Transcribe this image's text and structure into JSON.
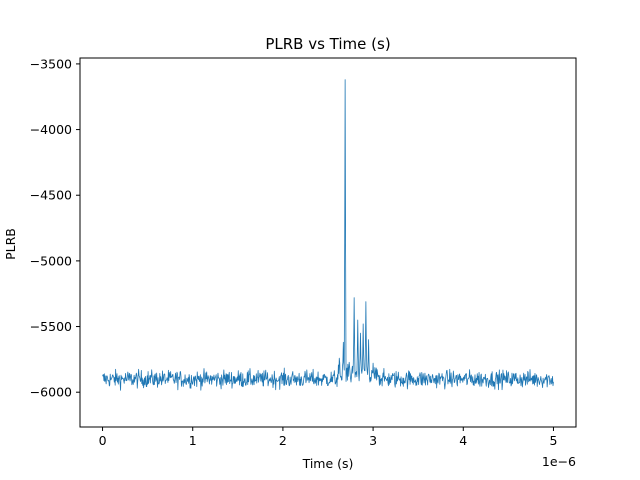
{
  "chart_data": {
    "type": "line",
    "title": "PLRB vs Time (s)",
    "xlabel": "Time (s)",
    "ylabel": "PLRB",
    "x_offset_label": "1e−6",
    "xlim": [
      -2.5e-07,
      5.25e-06
    ],
    "ylim": [
      -6265,
      -3455
    ],
    "x_ticks": [
      0,
      1e-06,
      2e-06,
      3e-06,
      4e-06,
      5e-06
    ],
    "x_tick_labels": [
      "0",
      "1",
      "2",
      "3",
      "4",
      "5"
    ],
    "y_ticks": [
      -6000,
      -5500,
      -5000,
      -4500,
      -4000,
      -3500
    ],
    "y_tick_labels": [
      "−6000",
      "−5500",
      "−5000",
      "−4500",
      "−4000",
      "−3500"
    ],
    "grid": false,
    "line_color": "#1f77b4",
    "baseline": -5900,
    "noise_amplitude": 60,
    "x_start": 0,
    "x_end": 5e-06,
    "n_points": 1000,
    "events": [
      {
        "x": 2.69e-06,
        "y": -3620
      },
      {
        "x": 2.67e-06,
        "y": -5620
      },
      {
        "x": 2.79e-06,
        "y": -5280
      },
      {
        "x": 2.83e-06,
        "y": -5450
      },
      {
        "x": 2.86e-06,
        "y": -5550
      },
      {
        "x": 2.89e-06,
        "y": -5480
      },
      {
        "x": 2.92e-06,
        "y": -5310
      },
      {
        "x": 2.95e-06,
        "y": -5600
      }
    ]
  }
}
